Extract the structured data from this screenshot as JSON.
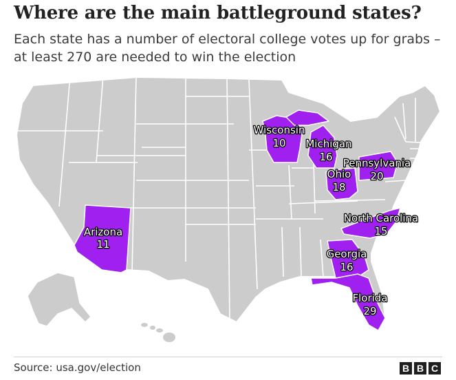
{
  "title": "Where are the main battleground states?",
  "subtitle": "Each state has a number of electoral college votes up for grabs – at least 270 are needed to win the election",
  "source": "Source: usa.gov/election",
  "logo_letters": [
    "B",
    "B",
    "C"
  ],
  "colors": {
    "base_state": "#cccccc",
    "border": "#ffffff",
    "battleground": "#a020f0",
    "label_fill": "#ffffff",
    "label_stroke": "#000000"
  },
  "battleground_states": [
    {
      "id": "arizona",
      "name": "Arizona",
      "votes": "11"
    },
    {
      "id": "wisconsin",
      "name": "Wisconsin",
      "votes": "10"
    },
    {
      "id": "michigan",
      "name": "Michigan",
      "votes": "16"
    },
    {
      "id": "ohio",
      "name": "Ohio",
      "votes": "18"
    },
    {
      "id": "pennsylvania",
      "name": "Pennsylvania",
      "votes": "20"
    },
    {
      "id": "north-carolina",
      "name": "North Carolina",
      "votes": "15"
    },
    {
      "id": "georgia",
      "name": "Georgia",
      "votes": "16"
    },
    {
      "id": "florida",
      "name": "Florida",
      "votes": "29"
    }
  ]
}
